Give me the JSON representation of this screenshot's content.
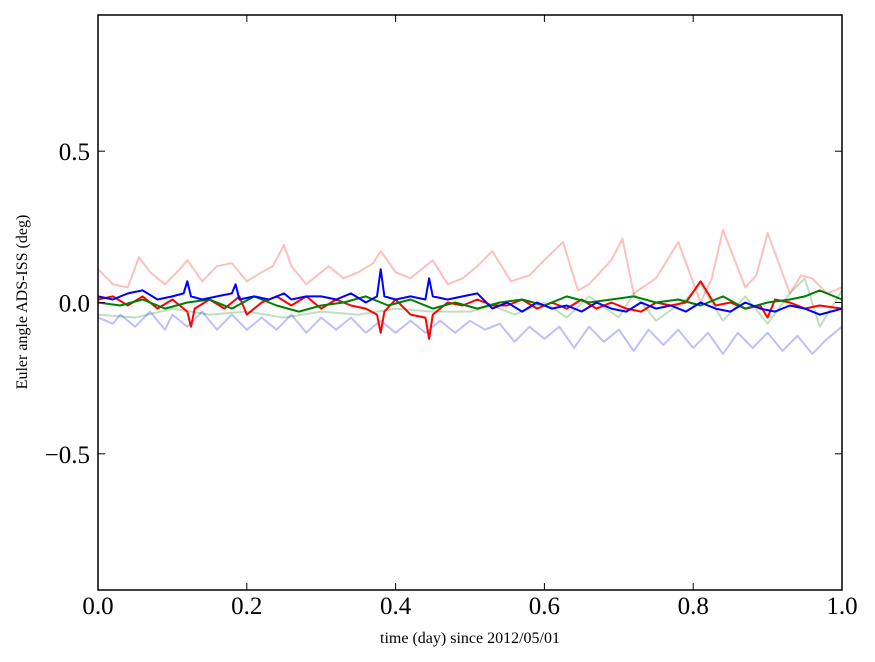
{
  "chart_data": {
    "type": "line",
    "xlabel": "time (day) since 2012/05/01",
    "ylabel": "Euler angle ADS-ISS (deg)",
    "xlim": [
      0.0,
      1.0
    ],
    "ylim": [
      -0.95,
      0.95
    ],
    "xticks": [
      0.0,
      0.2,
      0.4,
      0.6,
      0.8,
      1.0
    ],
    "xtick_labels": [
      "0.0",
      "0.2",
      "0.4",
      "0.6",
      "0.8",
      "1.0"
    ],
    "yticks": [
      -0.5,
      0.0,
      0.5
    ],
    "ytick_labels": [
      "−0.5",
      "0.0",
      "0.5"
    ],
    "grid": false,
    "legend": "none",
    "series": [
      {
        "color": "#ff0000",
        "alpha": 0.25,
        "width": 2,
        "x": [
          0.0,
          0.02,
          0.04,
          0.055,
          0.07,
          0.09,
          0.11,
          0.12,
          0.14,
          0.16,
          0.18,
          0.2,
          0.22,
          0.235,
          0.25,
          0.26,
          0.28,
          0.3,
          0.31,
          0.33,
          0.35,
          0.37,
          0.38,
          0.4,
          0.42,
          0.44,
          0.45,
          0.47,
          0.49,
          0.51,
          0.53,
          0.555,
          0.58,
          0.6,
          0.625,
          0.645,
          0.66,
          0.69,
          0.705,
          0.72,
          0.75,
          0.765,
          0.78,
          0.81,
          0.825,
          0.84,
          0.87,
          0.885,
          0.9,
          0.93,
          0.945,
          0.96,
          0.98,
          1.0
        ],
        "y": [
          0.11,
          0.06,
          0.05,
          0.15,
          0.1,
          0.06,
          0.11,
          0.14,
          0.07,
          0.12,
          0.13,
          0.07,
          0.1,
          0.12,
          0.19,
          0.12,
          0.06,
          0.1,
          0.12,
          0.08,
          0.1,
          0.13,
          0.17,
          0.1,
          0.08,
          0.12,
          0.14,
          0.06,
          0.08,
          0.12,
          0.17,
          0.07,
          0.09,
          0.14,
          0.2,
          0.04,
          0.06,
          0.14,
          0.21,
          0.03,
          0.08,
          0.14,
          0.2,
          0.0,
          0.08,
          0.24,
          0.05,
          0.09,
          0.23,
          0.03,
          0.09,
          0.08,
          0.03,
          0.05
        ]
      },
      {
        "color": "#008000",
        "alpha": 0.25,
        "width": 2,
        "x": [
          0.0,
          0.05,
          0.1,
          0.15,
          0.2,
          0.25,
          0.3,
          0.35,
          0.4,
          0.45,
          0.5,
          0.53,
          0.56,
          0.6,
          0.63,
          0.66,
          0.7,
          0.72,
          0.75,
          0.79,
          0.81,
          0.84,
          0.87,
          0.9,
          0.93,
          0.95,
          0.97,
          1.0
        ],
        "y": [
          -0.04,
          -0.05,
          -0.02,
          -0.04,
          -0.03,
          -0.05,
          -0.03,
          -0.04,
          -0.02,
          -0.03,
          -0.03,
          -0.01,
          -0.04,
          0.0,
          -0.05,
          0.02,
          -0.05,
          0.03,
          -0.06,
          0.01,
          0.06,
          -0.06,
          0.02,
          -0.07,
          0.03,
          0.08,
          -0.08,
          0.04
        ]
      },
      {
        "color": "#0000ff",
        "alpha": 0.25,
        "width": 2,
        "x": [
          0.0,
          0.02,
          0.03,
          0.05,
          0.07,
          0.09,
          0.1,
          0.12,
          0.14,
          0.16,
          0.18,
          0.2,
          0.22,
          0.24,
          0.26,
          0.28,
          0.3,
          0.32,
          0.34,
          0.36,
          0.38,
          0.4,
          0.42,
          0.44,
          0.46,
          0.48,
          0.5,
          0.52,
          0.54,
          0.56,
          0.58,
          0.6,
          0.62,
          0.64,
          0.66,
          0.68,
          0.7,
          0.72,
          0.74,
          0.76,
          0.78,
          0.8,
          0.82,
          0.84,
          0.86,
          0.88,
          0.9,
          0.92,
          0.94,
          0.96,
          0.98,
          1.0
        ],
        "y": [
          -0.05,
          -0.07,
          -0.04,
          -0.08,
          -0.03,
          -0.09,
          -0.04,
          -0.08,
          -0.03,
          -0.09,
          -0.04,
          -0.09,
          -0.05,
          -0.09,
          -0.04,
          -0.1,
          -0.05,
          -0.09,
          -0.05,
          -0.1,
          -0.06,
          -0.1,
          -0.06,
          -0.1,
          -0.06,
          -0.1,
          -0.06,
          -0.09,
          -0.07,
          -0.13,
          -0.08,
          -0.12,
          -0.08,
          -0.15,
          -0.08,
          -0.13,
          -0.09,
          -0.16,
          -0.09,
          -0.14,
          -0.09,
          -0.15,
          -0.1,
          -0.17,
          -0.1,
          -0.15,
          -0.1,
          -0.16,
          -0.11,
          -0.17,
          -0.12,
          -0.08
        ]
      },
      {
        "color": "#ff0000",
        "alpha": 1.0,
        "width": 2,
        "x": [
          0.0,
          0.02,
          0.04,
          0.06,
          0.08,
          0.1,
          0.12,
          0.125,
          0.13,
          0.15,
          0.17,
          0.19,
          0.2,
          0.22,
          0.24,
          0.26,
          0.28,
          0.3,
          0.32,
          0.34,
          0.36,
          0.375,
          0.38,
          0.385,
          0.4,
          0.42,
          0.44,
          0.445,
          0.45,
          0.47,
          0.49,
          0.51,
          0.53,
          0.55,
          0.57,
          0.59,
          0.61,
          0.63,
          0.65,
          0.67,
          0.69,
          0.71,
          0.73,
          0.75,
          0.77,
          0.79,
          0.81,
          0.83,
          0.85,
          0.87,
          0.89,
          0.9,
          0.91,
          0.93,
          0.95,
          0.97,
          1.0
        ],
        "y": [
          0.01,
          0.02,
          -0.01,
          0.02,
          -0.02,
          0.01,
          -0.03,
          -0.08,
          -0.02,
          0.01,
          -0.02,
          0.02,
          -0.04,
          0.0,
          0.02,
          -0.01,
          0.02,
          -0.02,
          0.01,
          -0.01,
          -0.02,
          -0.04,
          -0.1,
          -0.03,
          0.01,
          -0.04,
          -0.05,
          -0.12,
          -0.04,
          0.0,
          -0.01,
          0.01,
          -0.01,
          -0.01,
          0.01,
          -0.02,
          0.0,
          -0.02,
          0.01,
          -0.02,
          0.0,
          -0.02,
          -0.03,
          0.0,
          -0.01,
          0.0,
          0.07,
          -0.01,
          0.0,
          -0.02,
          -0.01,
          -0.05,
          0.01,
          0.0,
          -0.02,
          -0.01,
          -0.02
        ]
      },
      {
        "color": "#008000",
        "alpha": 1.0,
        "width": 2,
        "x": [
          0.0,
          0.03,
          0.06,
          0.09,
          0.12,
          0.15,
          0.18,
          0.21,
          0.24,
          0.27,
          0.3,
          0.33,
          0.36,
          0.39,
          0.42,
          0.45,
          0.48,
          0.51,
          0.54,
          0.57,
          0.6,
          0.63,
          0.66,
          0.69,
          0.72,
          0.75,
          0.78,
          0.81,
          0.84,
          0.87,
          0.9,
          0.93,
          0.95,
          0.97,
          1.0
        ],
        "y": [
          0.0,
          -0.01,
          0.01,
          -0.02,
          0.0,
          0.01,
          -0.02,
          0.02,
          -0.01,
          -0.03,
          -0.01,
          0.0,
          0.02,
          -0.01,
          0.01,
          -0.02,
          0.0,
          -0.02,
          0.0,
          0.01,
          -0.01,
          0.02,
          0.0,
          0.01,
          0.02,
          0.0,
          0.01,
          -0.01,
          0.02,
          -0.02,
          0.0,
          0.01,
          0.02,
          0.04,
          0.01
        ]
      },
      {
        "color": "#0000ff",
        "alpha": 1.0,
        "width": 2,
        "x": [
          0.0,
          0.02,
          0.04,
          0.06,
          0.08,
          0.1,
          0.115,
          0.12,
          0.125,
          0.14,
          0.16,
          0.18,
          0.185,
          0.19,
          0.21,
          0.23,
          0.25,
          0.26,
          0.28,
          0.3,
          0.32,
          0.34,
          0.36,
          0.375,
          0.38,
          0.385,
          0.4,
          0.42,
          0.44,
          0.445,
          0.45,
          0.47,
          0.49,
          0.51,
          0.53,
          0.55,
          0.57,
          0.59,
          0.61,
          0.63,
          0.65,
          0.67,
          0.69,
          0.71,
          0.73,
          0.75,
          0.77,
          0.79,
          0.81,
          0.83,
          0.85,
          0.87,
          0.89,
          0.91,
          0.93,
          0.95,
          0.97,
          1.0
        ],
        "y": [
          0.02,
          0.01,
          0.03,
          0.04,
          0.01,
          0.02,
          0.03,
          0.07,
          0.02,
          0.01,
          0.02,
          0.03,
          0.06,
          0.01,
          0.02,
          0.01,
          0.03,
          0.01,
          0.02,
          0.02,
          0.01,
          0.03,
          0.0,
          0.02,
          0.11,
          0.02,
          0.01,
          0.02,
          0.01,
          0.08,
          0.02,
          0.01,
          0.02,
          0.03,
          -0.02,
          0.0,
          -0.03,
          0.0,
          -0.02,
          -0.01,
          -0.03,
          0.0,
          -0.02,
          -0.03,
          0.0,
          -0.02,
          -0.01,
          -0.03,
          0.0,
          -0.02,
          -0.03,
          0.0,
          -0.02,
          -0.03,
          -0.01,
          -0.02,
          -0.04,
          -0.02
        ]
      }
    ]
  }
}
